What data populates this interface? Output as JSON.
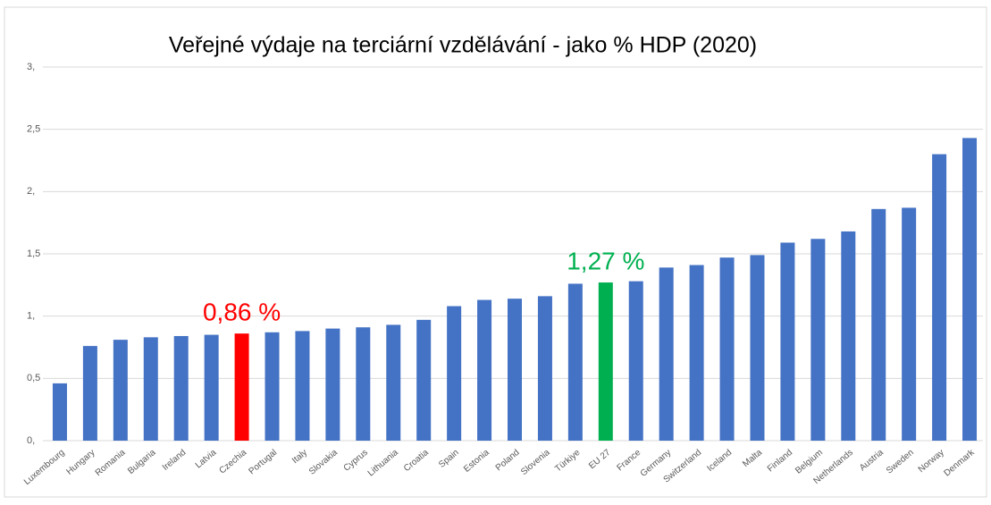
{
  "chart_data": {
    "type": "bar",
    "title": "Veřejné výdaje na terciární vzdělávání - jako % HDP (2020)",
    "categories": [
      "Luxembourg",
      "Hungary",
      "Romania",
      "Bulgaria",
      "Ireland",
      "Latvia",
      "Czechia",
      "Portugal",
      "Italy",
      "Slovakia",
      "Cyprus",
      "Lithuania",
      "Croatia",
      "Spain",
      "Estonia",
      "Poland",
      "Slovenia",
      "Türkiye",
      "EU 27",
      "France",
      "Germany",
      "Switzerland",
      "Iceland",
      "Malta",
      "Finland",
      "Belgium",
      "Netherlands",
      "Austria",
      "Sweden",
      "Norway",
      "Denmark"
    ],
    "values": [
      0.46,
      0.76,
      0.81,
      0.83,
      0.84,
      0.85,
      0.86,
      0.87,
      0.88,
      0.9,
      0.91,
      0.93,
      0.97,
      1.08,
      1.13,
      1.14,
      1.16,
      1.26,
      1.27,
      1.28,
      1.39,
      1.41,
      1.47,
      1.49,
      1.59,
      1.62,
      1.68,
      1.86,
      1.87,
      2.3,
      2.43
    ],
    "value_labels": [
      null,
      null,
      null,
      null,
      null,
      null,
      "0,86 %",
      null,
      null,
      null,
      null,
      null,
      null,
      null,
      null,
      null,
      null,
      null,
      "1,27 %",
      null,
      null,
      null,
      null,
      null,
      null,
      null,
      null,
      null,
      null,
      null,
      null
    ],
    "colors": [
      "#4472c4",
      "#4472c4",
      "#4472c4",
      "#4472c4",
      "#4472c4",
      "#4472c4",
      "#ff0000",
      "#4472c4",
      "#4472c4",
      "#4472c4",
      "#4472c4",
      "#4472c4",
      "#4472c4",
      "#4472c4",
      "#4472c4",
      "#4472c4",
      "#4472c4",
      "#4472c4",
      "#00b050",
      "#4472c4",
      "#4472c4",
      "#4472c4",
      "#4472c4",
      "#4472c4",
      "#4472c4",
      "#4472c4",
      "#4472c4",
      "#4472c4",
      "#4472c4",
      "#4472c4",
      "#4472c4"
    ],
    "ylim": [
      0,
      3
    ],
    "yticks": [
      {
        "value": 0,
        "label": "0,"
      },
      {
        "value": 0.5,
        "label": "0,5"
      },
      {
        "value": 1,
        "label": "1,"
      },
      {
        "value": 1.5,
        "label": "1,5"
      },
      {
        "value": 2,
        "label": "2,"
      },
      {
        "value": 2.5,
        "label": "2,5"
      },
      {
        "value": 3,
        "label": "3,"
      }
    ],
    "grid": true
  }
}
